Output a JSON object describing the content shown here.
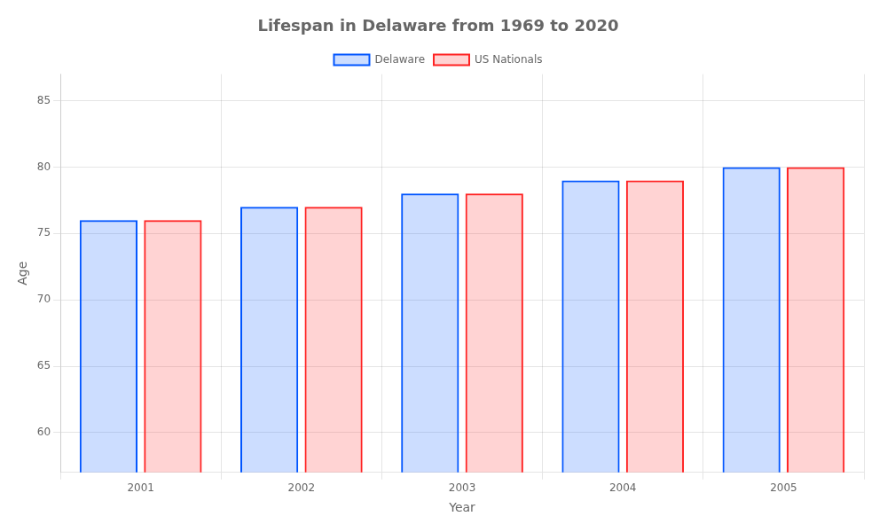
{
  "chart_data": {
    "type": "bar",
    "title": "Lifespan in Delaware from 1969 to 2020",
    "x_label": "Year",
    "y_label": "Age",
    "categories": [
      "2001",
      "2002",
      "2003",
      "2004",
      "2005"
    ],
    "series": [
      {
        "name": "Delaware",
        "color": "#0055ff",
        "values": [
          76,
          77,
          78,
          79,
          80
        ]
      },
      {
        "name": "US Nationals",
        "color": "#ff2222",
        "values": [
          76,
          77,
          78,
          79,
          80
        ]
      }
    ],
    "ylim": [
      57,
      87
    ],
    "yticks": [
      60,
      65,
      70,
      75,
      80,
      85
    ],
    "grid": true,
    "legend": "top"
  }
}
